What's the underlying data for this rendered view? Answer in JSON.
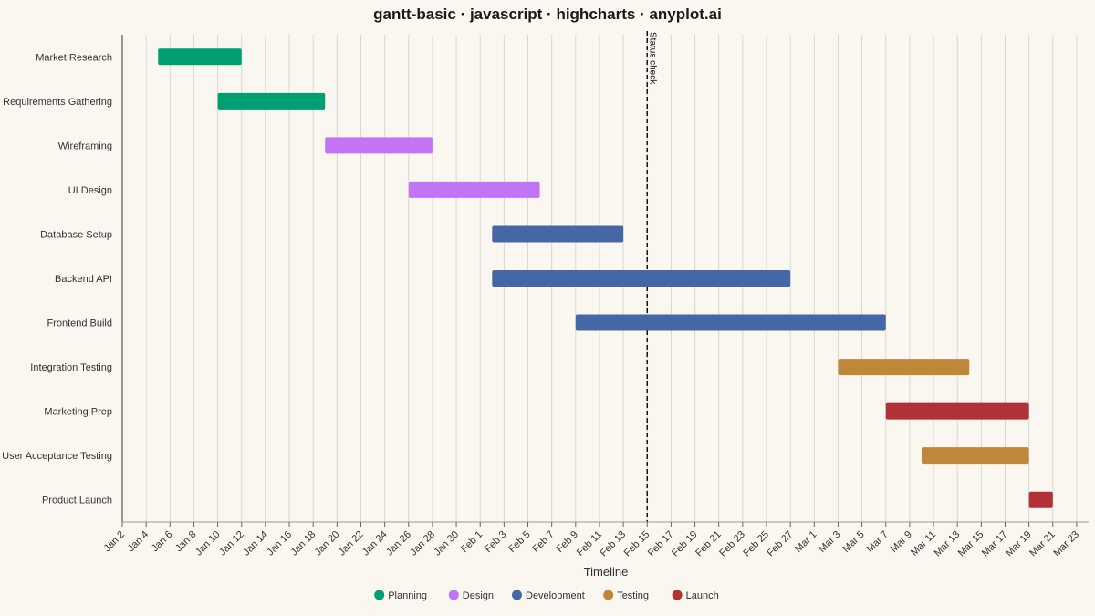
{
  "chart_data": {
    "type": "gantt",
    "title": "gantt-basic · javascript · highcharts · anyplot.ai",
    "xlabel": "Timeline",
    "ylabel": "",
    "x_axis_type": "datetime",
    "x_range": [
      "2024-01-02",
      "2024-03-23"
    ],
    "x_tick_interval_days": 2,
    "x_tick_labels": [
      "Jan 2",
      "Jan 4",
      "Jan 6",
      "Jan 8",
      "Jan 10",
      "Jan 12",
      "Jan 14",
      "Jan 16",
      "Jan 18",
      "Jan 20",
      "Jan 22",
      "Jan 24",
      "Jan 26",
      "Jan 28",
      "Jan 30",
      "Feb 1",
      "Feb 3",
      "Feb 5",
      "Feb 7",
      "Feb 9",
      "Feb 11",
      "Feb 13",
      "Feb 15",
      "Feb 17",
      "Feb 19",
      "Feb 21",
      "Feb 23",
      "Feb 25",
      "Feb 27",
      "Mar 1",
      "Mar 3",
      "Mar 5",
      "Mar 7",
      "Mar 9",
      "Mar 11",
      "Mar 13",
      "Mar 15",
      "Mar 17",
      "Mar 19",
      "Mar 21",
      "Mar 23"
    ],
    "grid": true,
    "legend_position": "bottom-center",
    "plot_line": {
      "label": "Status check",
      "date": "2024-02-15",
      "style": "dashed"
    },
    "categories": [
      "Planning",
      "Design",
      "Development",
      "Testing",
      "Launch"
    ],
    "category_colors": {
      "Planning": "#009e73",
      "Design": "#c274f7",
      "Development": "#4667a6",
      "Testing": "#c0873a",
      "Launch": "#b03136"
    },
    "tasks": [
      {
        "name": "Market Research",
        "category": "Planning",
        "start": "2024-01-05",
        "end": "2024-01-12"
      },
      {
        "name": "Requirements Gathering",
        "category": "Planning",
        "start": "2024-01-10",
        "end": "2024-01-19"
      },
      {
        "name": "Wireframing",
        "category": "Design",
        "start": "2024-01-19",
        "end": "2024-01-28"
      },
      {
        "name": "UI Design",
        "category": "Design",
        "start": "2024-01-26",
        "end": "2024-02-06"
      },
      {
        "name": "Database Setup",
        "category": "Development",
        "start": "2024-02-02",
        "end": "2024-02-13"
      },
      {
        "name": "Backend API",
        "category": "Development",
        "start": "2024-02-02",
        "end": "2024-02-27"
      },
      {
        "name": "Frontend Build",
        "category": "Development",
        "start": "2024-02-09",
        "end": "2024-03-06"
      },
      {
        "name": "Integration Testing",
        "category": "Testing",
        "start": "2024-03-02",
        "end": "2024-03-13"
      },
      {
        "name": "Marketing Prep",
        "category": "Launch",
        "start": "2024-03-06",
        "end": "2024-03-18"
      },
      {
        "name": "User Acceptance Testing",
        "category": "Testing",
        "start": "2024-03-09",
        "end": "2024-03-18"
      },
      {
        "name": "Product Launch",
        "category": "Launch",
        "start": "2024-03-18",
        "end": "2024-03-20"
      }
    ]
  }
}
